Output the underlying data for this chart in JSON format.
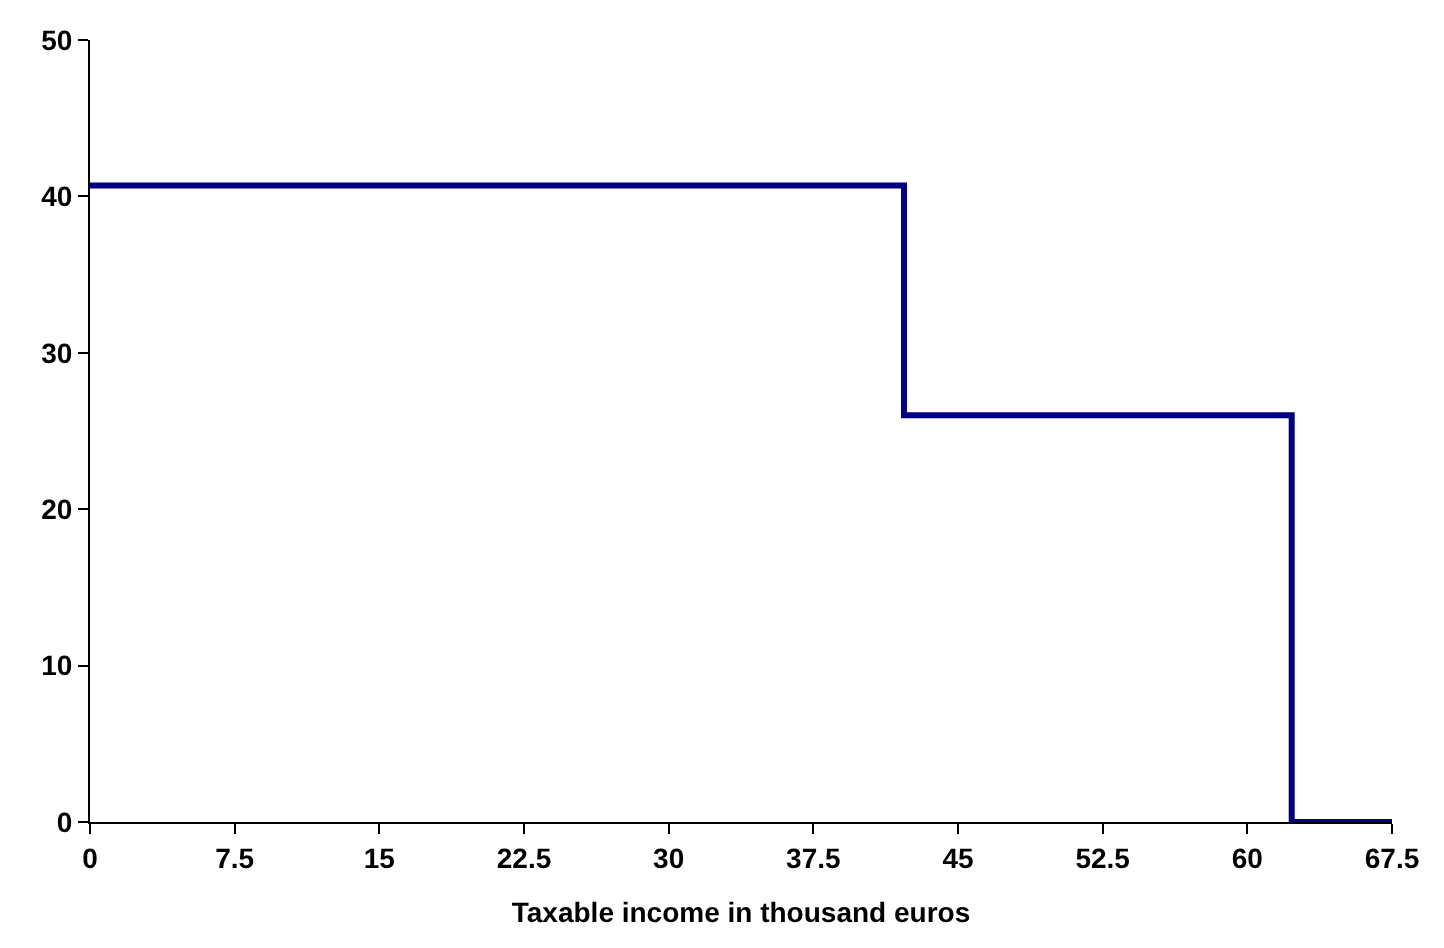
{
  "chart_data": {
    "type": "step",
    "xlabel": "Taxable income in thousand euros",
    "x": [
      0,
      42.2,
      62.3,
      67.5
    ],
    "series": [
      {
        "color": "#000080",
        "values": [
          40.7,
          26.0,
          0,
          0
        ]
      }
    ],
    "xlim": [
      0,
      67.5
    ],
    "xticks": [
      0,
      7.5,
      15,
      22.5,
      30,
      37.5,
      45,
      52.5,
      60,
      67.5
    ],
    "ylim": [
      0,
      50
    ],
    "yticks": [
      0,
      10,
      20,
      30,
      40,
      50
    ]
  }
}
